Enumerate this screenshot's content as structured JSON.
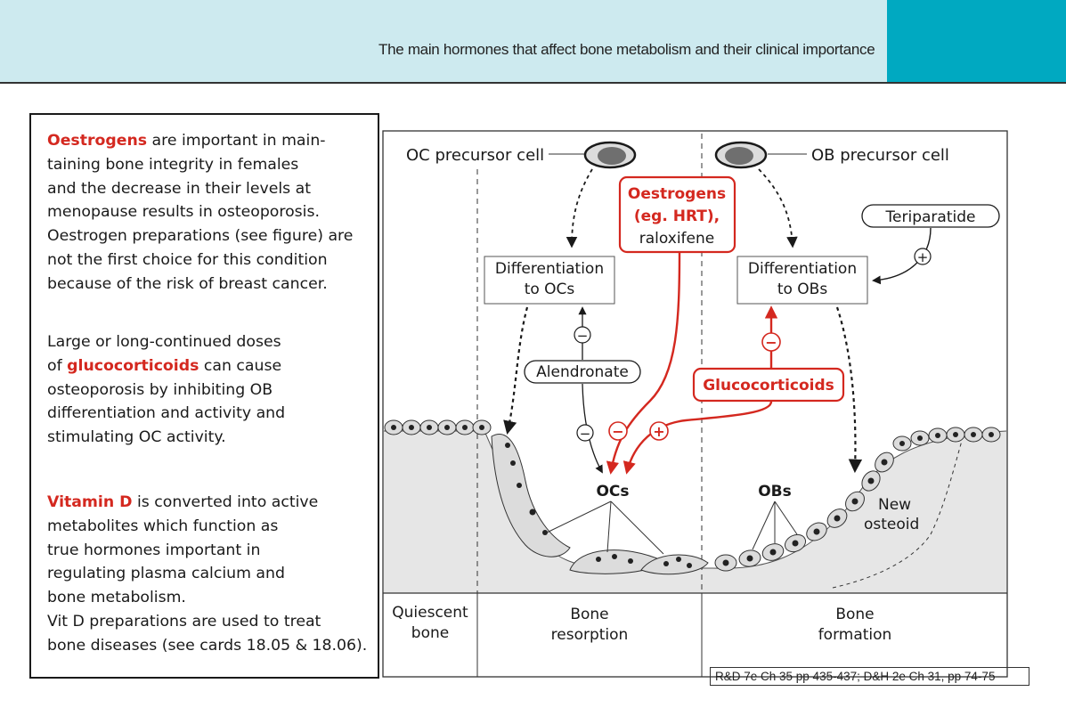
{
  "header": {
    "title": "The main hormones that affect bone metabolism and their clinical importance"
  },
  "text_panel": {
    "para1": {
      "key": "Oestrogens",
      "text": " are important in main-\ntaining bone integrity in females\nand the decrease in their levels at\nmenopause results in osteoporosis.\nOestrogen preparations (see figure) are\nnot the first choice for this condition\nbecause of the risk of breast cancer."
    },
    "para2": {
      "pre": "Large or long-continued doses\nof ",
      "key": "glucocorticoids",
      "text": " can cause\nosteoporosis by inhibiting OB\ndifferentiation and activity and\nstimulating OC activity."
    },
    "para3": {
      "key": "Vitamin D",
      "text": " is converted into active\nmetabolites which function as\ntrue hormones important in\nregulating plasma calcium and\nbone metabolism.\nVit D preparations are used to treat\nbone diseases (see cards 18.05 & 18.06)."
    }
  },
  "figure": {
    "oc_precursor": "OC precursor cell",
    "ob_precursor": "OB precursor cell",
    "diff_oc_line1": "Differentiation",
    "diff_oc_line2": "to OCs",
    "diff_ob_line1": "Differentiation",
    "diff_ob_line2": "to OBs",
    "oestrogens_line1": "Oestrogens",
    "oestrogens_line2": "(eg. HRT),",
    "oestrogens_line3": "raloxifene",
    "teriparatide": "Teriparatide",
    "alendronate": "Alendronate",
    "glucocorticoids": "Glucocorticoids",
    "ocs": "OCs",
    "obs": "OBs",
    "new_osteoid_line1": "New",
    "new_osteoid_line2": "osteoid",
    "quiescent_line1": "Quiescent",
    "quiescent_line2": "bone",
    "resorption_line1": "Bone",
    "resorption_line2": "resorption",
    "formation_line1": "Bone",
    "formation_line2": "formation",
    "minus": "−",
    "plus": "+"
  },
  "reference": "R&D 7e Ch 35 pp 435-437; D&H 2e Ch 31, pp 74-75",
  "colors": {
    "accent_red": "#d4281f",
    "header_light": "#cdeaef",
    "header_teal": "#00a9c1",
    "bone_grey": "#e6e6e6",
    "cell_grey": "#dcdcdc"
  }
}
